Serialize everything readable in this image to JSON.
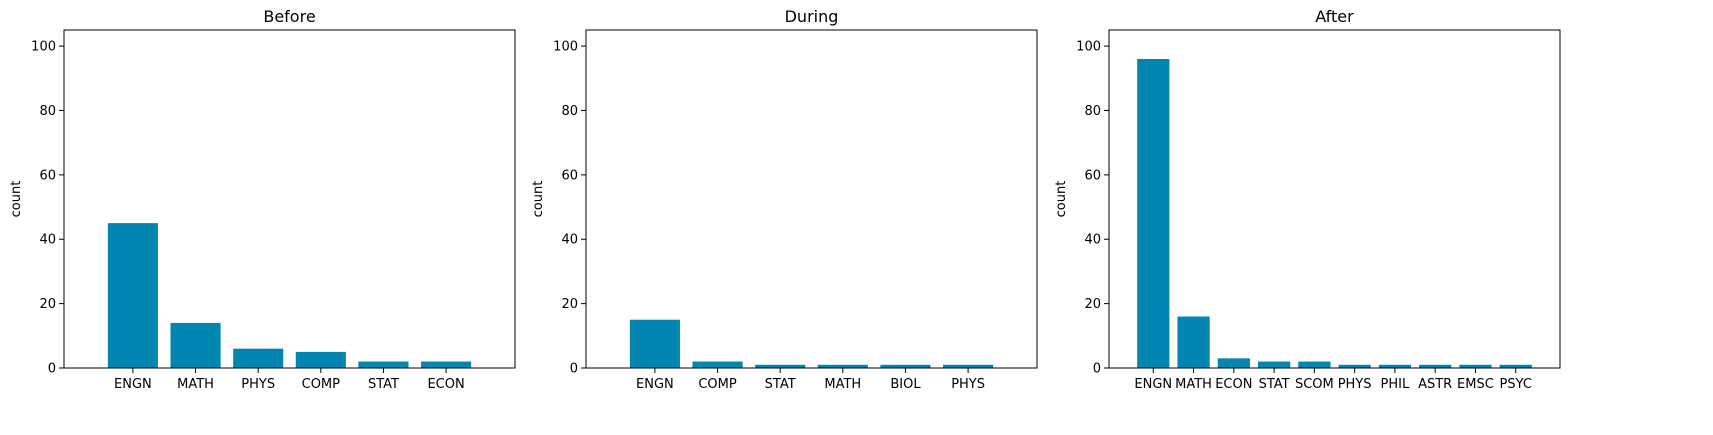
{
  "chart_data": [
    {
      "type": "bar",
      "title": "Before",
      "xlabel": "",
      "ylabel": "count",
      "ylim": [
        0,
        105
      ],
      "yticks": [
        0,
        20,
        40,
        60,
        80,
        100
      ],
      "categories": [
        "ENGN",
        "MATH",
        "PHYS",
        "COMP",
        "STAT",
        "ECON"
      ],
      "values": [
        45,
        14,
        6,
        5,
        2,
        2
      ],
      "bar_color": "#0086b0",
      "grid": false
    },
    {
      "type": "bar",
      "title": "During",
      "xlabel": "",
      "ylabel": "count",
      "ylim": [
        0,
        105
      ],
      "yticks": [
        0,
        20,
        40,
        60,
        80,
        100
      ],
      "categories": [
        "ENGN",
        "COMP",
        "STAT",
        "MATH",
        "BIOL",
        "PHYS"
      ],
      "values": [
        15,
        2,
        1,
        1,
        1,
        1
      ],
      "bar_color": "#0086b0",
      "grid": false
    },
    {
      "type": "bar",
      "title": "After",
      "xlabel": "",
      "ylabel": "count",
      "ylim": [
        0,
        105
      ],
      "yticks": [
        0,
        20,
        40,
        60,
        80,
        100
      ],
      "categories": [
        "ENGN",
        "MATH",
        "ECON",
        "STAT",
        "SCOM",
        "PHYS",
        "PHIL",
        "ASTR",
        "EMSC",
        "PSYC"
      ],
      "values": [
        96,
        16,
        3,
        2,
        2,
        1,
        1,
        1,
        1,
        1
      ],
      "bar_color": "#0086b0",
      "grid": false
    }
  ]
}
